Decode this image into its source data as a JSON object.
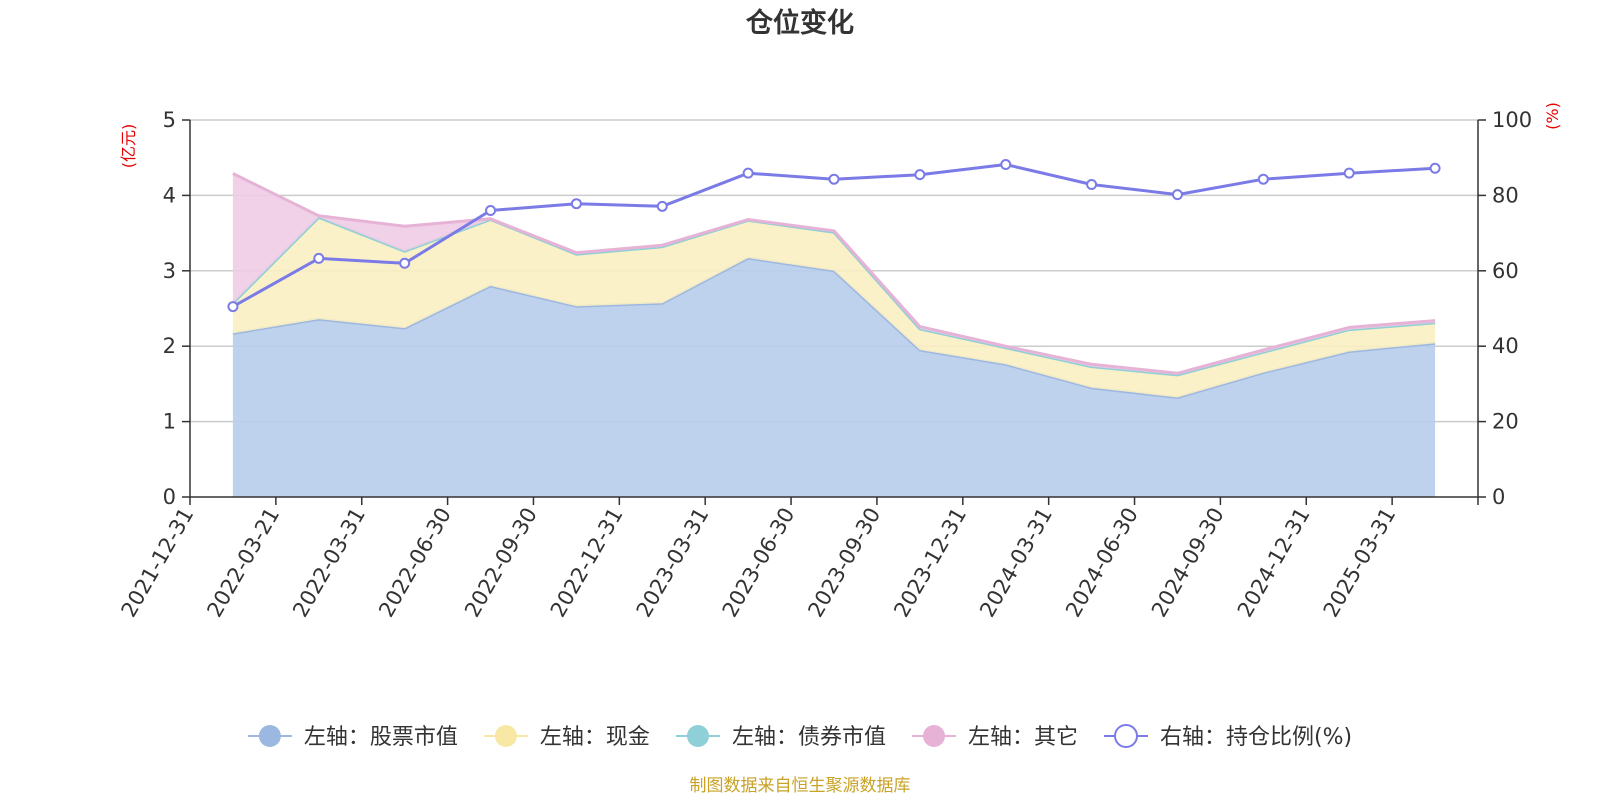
{
  "chart_data": {
    "type": "area",
    "title": "仓位变化",
    "left_axis_unit": "(亿元)",
    "right_axis_unit": "(%)",
    "ylim_left": [
      0,
      5
    ],
    "yticks_left": [
      "0",
      "1",
      "2",
      "3",
      "4",
      "5"
    ],
    "ylim_right": [
      0,
      100
    ],
    "yticks_right": [
      "0",
      "20",
      "40",
      "60",
      "80",
      "100"
    ],
    "categories": [
      "2021-12-31",
      "2022-03-21",
      "2022-03-31",
      "2022-06-30",
      "2022-09-30",
      "2022-12-31",
      "2023-03-31",
      "2023-06-30",
      "2023-09-30",
      "2023-12-31",
      "2024-03-31",
      "2024-06-30",
      "2024-09-30",
      "2024-12-31",
      "2025-03-31"
    ],
    "series": [
      {
        "name": "左轴：股票市值",
        "axis": "left",
        "stack": true,
        "color": "#9db8e0",
        "fill": "#b8cdeb",
        "values": [
          2.17,
          2.36,
          2.24,
          2.8,
          2.53,
          2.57,
          3.17,
          3.0,
          1.95,
          1.76,
          1.45,
          1.32,
          1.65,
          1.93,
          2.04
        ]
      },
      {
        "name": "左轴：现金",
        "axis": "left",
        "stack": true,
        "color": "#f8e8a6",
        "fill": "#fbf0c2",
        "values": [
          0.4,
          1.35,
          1.02,
          0.88,
          0.69,
          0.75,
          0.5,
          0.51,
          0.28,
          0.22,
          0.28,
          0.3,
          0.27,
          0.29,
          0.27
        ]
      },
      {
        "name": "左轴：债券市值",
        "axis": "left",
        "stack": true,
        "color": "#8fcfd8",
        "fill": "#a9dce3",
        "values": [
          0,
          0,
          0,
          0,
          0,
          0,
          0,
          0,
          0,
          0,
          0,
          0,
          0,
          0,
          0
        ]
      },
      {
        "name": "左轴：其它",
        "axis": "left",
        "stack": true,
        "color": "#e6b3d7",
        "fill": "#efcce4",
        "values": [
          1.72,
          0.02,
          0.33,
          0.01,
          0.02,
          0.02,
          0.01,
          0.02,
          0.03,
          0.02,
          0.03,
          0.02,
          0.03,
          0.03,
          0.03
        ]
      },
      {
        "name": "右轴：持仓比例(%)",
        "axis": "right",
        "stack": false,
        "color": "#7b7be8",
        "values": [
          50.5,
          63.3,
          62.0,
          76.0,
          77.8,
          77.1,
          85.9,
          84.3,
          85.5,
          88.2,
          82.9,
          80.2,
          84.3,
          85.9,
          87.2
        ]
      }
    ],
    "legend_position": "bottom",
    "grid": true
  },
  "source_note": "制图数据来自恒生聚源数据库"
}
